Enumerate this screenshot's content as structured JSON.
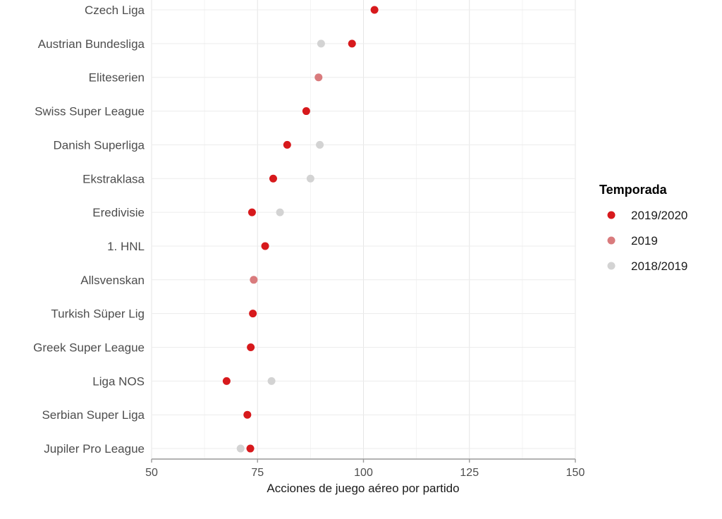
{
  "chart_data": {
    "type": "scatter",
    "xlabel": "Acciones de juego aéreo por partido",
    "xlim": [
      50,
      150
    ],
    "xticks": [
      50,
      75,
      100,
      125,
      150
    ],
    "grid": true,
    "legend": {
      "title": "Temporada",
      "placement": "right",
      "entries": [
        {
          "name": "2019/2020",
          "color": "#d7191c"
        },
        {
          "name": "2019",
          "color": "#d97b7d"
        },
        {
          "name": "2018/2019",
          "color": "#d3d3d3"
        }
      ]
    },
    "categories": [
      "Czech Liga",
      "Austrian Bundesliga",
      "Eliteserien",
      "Swiss Super League",
      "Danish Superliga",
      "Ekstraklasa",
      "Eredivisie",
      "1. HNL",
      "Allsvenskan",
      "Turkish Süper Lig",
      "Greek Super League",
      "Liga NOS",
      "Serbian Super Liga",
      "Jupiler Pro League"
    ],
    "series": [
      {
        "name": "2018/2019",
        "color": "#d3d3d3",
        "points": [
          {
            "category": "Austrian Bundesliga",
            "x": 90.0
          },
          {
            "category": "Danish Superliga",
            "x": 89.7
          },
          {
            "category": "Ekstraklasa",
            "x": 87.5
          },
          {
            "category": "Eredivisie",
            "x": 80.3
          },
          {
            "category": "Liga NOS",
            "x": 78.3
          },
          {
            "category": "Jupiler Pro League",
            "x": 71.0
          }
        ]
      },
      {
        "name": "2019",
        "color": "#d97b7d",
        "points": [
          {
            "category": "Eliteserien",
            "x": 89.4
          },
          {
            "category": "Allsvenskan",
            "x": 74.1
          }
        ]
      },
      {
        "name": "2019/2020",
        "color": "#d7191c",
        "points": [
          {
            "category": "Czech Liga",
            "x": 102.6
          },
          {
            "category": "Austrian Bundesliga",
            "x": 97.3
          },
          {
            "category": "Swiss Super League",
            "x": 86.5
          },
          {
            "category": "Danish Superliga",
            "x": 82.0
          },
          {
            "category": "Ekstraklasa",
            "x": 78.7
          },
          {
            "category": "Eredivisie",
            "x": 73.7
          },
          {
            "category": "1. HNL",
            "x": 76.8
          },
          {
            "category": "Turkish Süper Lig",
            "x": 73.9
          },
          {
            "category": "Greek Super League",
            "x": 73.4
          },
          {
            "category": "Liga NOS",
            "x": 67.7
          },
          {
            "category": "Serbian Super Liga",
            "x": 72.6
          },
          {
            "category": "Jupiler Pro League",
            "x": 73.3
          }
        ]
      }
    ]
  }
}
